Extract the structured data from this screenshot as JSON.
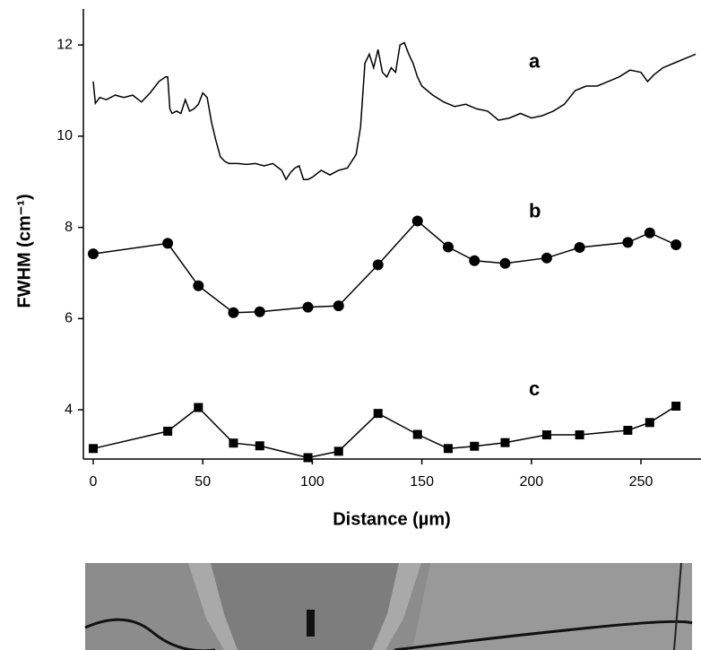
{
  "chart_data": {
    "type": "line",
    "x_label": "Distance (µm)",
    "y_label": "FWHM (cm⁻¹)",
    "xlim": [
      -4.5,
      277.4
    ],
    "xticks": [
      0,
      50,
      100,
      150,
      200,
      250
    ],
    "ylim": [
      2.92,
      12.79
    ],
    "yticks": [
      4,
      6,
      8,
      10,
      12
    ],
    "grid": false,
    "series": [
      {
        "name": "a",
        "color": "#000000",
        "marker": "none",
        "x": [
          0,
          1,
          3,
          6,
          10,
          14,
          18,
          22,
          26,
          30,
          33,
          34,
          35,
          36,
          38,
          40,
          42,
          44,
          46,
          48,
          50,
          52,
          54,
          56,
          58,
          60,
          62,
          66,
          70,
          74,
          78,
          82,
          86,
          88,
          90,
          92,
          94,
          96,
          98,
          100,
          104,
          108,
          112,
          116,
          120,
          122,
          124,
          126,
          128,
          130,
          132,
          134,
          136,
          138,
          140,
          142,
          144,
          146,
          148,
          150,
          155,
          160,
          165,
          170,
          175,
          180,
          185,
          190,
          195,
          200,
          205,
          210,
          215,
          220,
          225,
          230,
          235,
          240,
          245,
          250,
          253,
          256,
          260,
          265,
          270,
          275
        ],
        "values": [
          11.2,
          10.72,
          10.85,
          10.8,
          10.9,
          10.85,
          10.9,
          10.75,
          10.95,
          11.2,
          11.3,
          11.3,
          10.6,
          10.5,
          10.55,
          10.5,
          10.8,
          10.55,
          10.6,
          10.7,
          10.95,
          10.85,
          10.3,
          9.9,
          9.55,
          9.45,
          9.4,
          9.4,
          9.38,
          9.4,
          9.35,
          9.4,
          9.25,
          9.05,
          9.2,
          9.3,
          9.35,
          9.05,
          9.05,
          9.1,
          9.25,
          9.15,
          9.25,
          9.3,
          9.6,
          10.2,
          11.6,
          11.8,
          11.5,
          11.9,
          11.4,
          11.3,
          11.5,
          11.4,
          12.0,
          12.05,
          11.8,
          11.6,
          11.3,
          11.1,
          10.9,
          10.75,
          10.65,
          10.7,
          10.6,
          10.55,
          10.35,
          10.4,
          10.5,
          10.4,
          10.45,
          10.55,
          10.7,
          11.0,
          11.1,
          11.1,
          11.2,
          11.3,
          11.45,
          11.4,
          11.2,
          11.35,
          11.5,
          11.6,
          11.7,
          11.8
        ]
      },
      {
        "name": "b",
        "color": "#000000",
        "marker": "circle",
        "x": [
          0,
          34,
          48,
          64,
          76,
          98,
          112,
          130,
          148,
          162,
          174,
          188,
          207,
          222,
          244,
          254,
          266
        ],
        "values": [
          7.42,
          7.65,
          6.72,
          6.13,
          6.15,
          6.25,
          6.28,
          7.18,
          8.14,
          7.57,
          7.27,
          7.21,
          7.33,
          7.56,
          7.67,
          7.88,
          7.62
        ]
      },
      {
        "name": "c",
        "color": "#000000",
        "marker": "square",
        "x": [
          0,
          34,
          48,
          64,
          76,
          98,
          112,
          130,
          148,
          162,
          174,
          188,
          207,
          222,
          244,
          254,
          266
        ],
        "values": [
          3.15,
          3.53,
          4.05,
          3.27,
          3.21,
          2.95,
          3.09,
          3.92,
          3.46,
          3.15,
          3.2,
          3.28,
          3.45,
          3.45,
          3.55,
          3.72,
          4.08
        ]
      }
    ]
  }
}
